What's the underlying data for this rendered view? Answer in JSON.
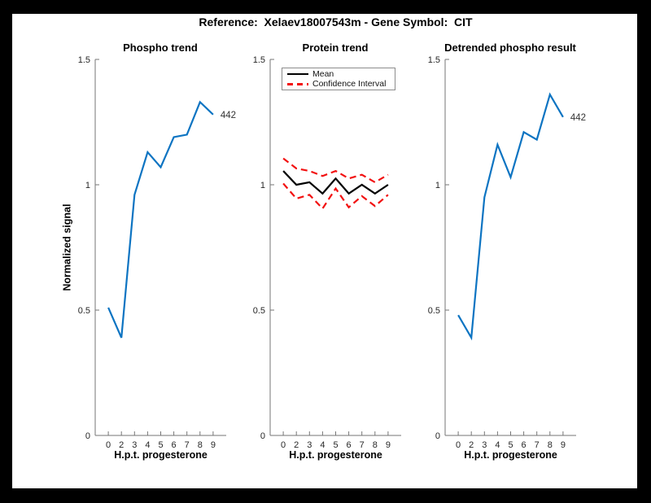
{
  "figure_title": "Reference:  Xelaev18007543m - Gene Symbol:  CIT",
  "ylabel": "Normalized signal",
  "legend": {
    "mean_label": "Mean",
    "ci_label": "Confidence Interval"
  },
  "colors": {
    "frame_bg": "#000000",
    "figure_bg": "#ffffff",
    "blue": "#0d74c2",
    "red": "#f21111",
    "black": "#000000",
    "spine": "#767676",
    "tick_text": "#262626",
    "end_label_text": "#333333"
  },
  "axes": {
    "ylim": [
      0,
      1.5
    ],
    "y_tick_values": [
      0,
      0.5,
      1,
      1.5
    ],
    "y_tick_labels": [
      "0",
      "0.5",
      "1",
      "1.5"
    ],
    "grid": "off"
  },
  "chart_data": [
    {
      "type": "line",
      "title": "Phospho trend",
      "xlabel": "H.p.t. progesterone",
      "ylabel": "Normalized signal",
      "ylim": [
        0,
        1.5
      ],
      "x_tick_labels": [
        "0",
        "2",
        "3",
        "4",
        "5",
        "6",
        "7",
        "8",
        "9"
      ],
      "end_label": "442",
      "series": [
        {
          "name": "phospho-line",
          "color": "#0d74c2",
          "style": "solid",
          "values": [
            0.51,
            0.39,
            0.96,
            1.13,
            1.07,
            1.19,
            1.2,
            1.33,
            1.28
          ]
        }
      ]
    },
    {
      "type": "line",
      "title": "Protein trend",
      "xlabel": "H.p.t. progesterone",
      "ylim": [
        0,
        1.5
      ],
      "x_tick_labels": [
        "0",
        "2",
        "3",
        "4",
        "5",
        "6",
        "7",
        "8",
        "9"
      ],
      "legend_entries": [
        "Mean",
        "Confidence Interval"
      ],
      "legend_position": "upper-left",
      "series": [
        {
          "name": "mean-line",
          "color": "#000000",
          "style": "solid",
          "values": [
            1.055,
            1.0,
            1.01,
            0.965,
            1.025,
            0.965,
            1.0,
            0.965,
            1.0
          ]
        },
        {
          "name": "ci-upper-line",
          "color": "#f21111",
          "style": "dashed",
          "values": [
            1.105,
            1.065,
            1.055,
            1.035,
            1.055,
            1.025,
            1.04,
            1.01,
            1.04
          ]
        },
        {
          "name": "ci-lower-line",
          "color": "#f21111",
          "style": "dashed",
          "values": [
            1.005,
            0.945,
            0.96,
            0.905,
            0.985,
            0.91,
            0.955,
            0.915,
            0.96
          ]
        }
      ]
    },
    {
      "type": "line",
      "title": "Detrended phospho result",
      "xlabel": "H.p.t. progesterone",
      "ylim": [
        0,
        1.5
      ],
      "x_tick_labels": [
        "0",
        "2",
        "3",
        "4",
        "5",
        "6",
        "7",
        "8",
        "9"
      ],
      "end_label": "442",
      "series": [
        {
          "name": "detrended-phospho-line",
          "color": "#0d74c2",
          "style": "solid",
          "values": [
            0.48,
            0.39,
            0.95,
            1.16,
            1.03,
            1.21,
            1.18,
            1.36,
            1.27
          ]
        }
      ]
    }
  ]
}
